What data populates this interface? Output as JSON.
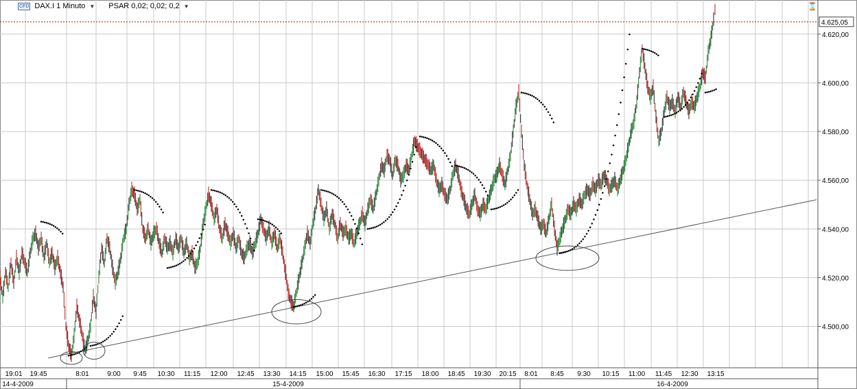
{
  "header": {
    "cfd_badge": "CFD",
    "instrument": "DAX.I 1 Minuto",
    "indicator": "PSAR 0,02; 0,02; 0,2"
  },
  "price_tag": "4.625,05",
  "colors": {
    "up": "#1b7a2a",
    "down": "#b01818",
    "sar": "#000000",
    "price_line": "#cc0000",
    "grid": "#c8c8c8",
    "trendline": "#555555"
  },
  "chart_data": {
    "type": "line",
    "y_ticks": [
      "4.500,00",
      "4.520,00",
      "4.540,00",
      "4.560,00",
      "4.580,00",
      "4.600,00",
      "4.620,00"
    ],
    "y_tick_values": [
      4500,
      4520,
      4540,
      4560,
      4580,
      4600,
      4620
    ],
    "ylim": [
      4483,
      4634
    ],
    "last_price": 4625.05,
    "x_labels": [
      "19:01",
      "19:45",
      "8:01",
      "9:00",
      "9:45",
      "10:30",
      "11:15",
      "12:00",
      "12:45",
      "13:30",
      "14:15",
      "15:00",
      "15:45",
      "16:30",
      "17:15",
      "18:00",
      "18:45",
      "19:30",
      "20:15",
      "8:01",
      "8:45",
      "9:30",
      "10:15",
      "11:00",
      "11:45",
      "12:30",
      "13:15"
    ],
    "date_labels": [
      "14-4-2009",
      "15-4-2009",
      "16-4-2009"
    ],
    "price_path": [
      [
        0,
        4520
      ],
      [
        4,
        4512
      ],
      [
        8,
        4522
      ],
      [
        12,
        4516
      ],
      [
        16,
        4526
      ],
      [
        20,
        4518
      ],
      [
        24,
        4528
      ],
      [
        28,
        4522
      ],
      [
        32,
        4530
      ],
      [
        36,
        4526
      ],
      [
        40,
        4522
      ],
      [
        44,
        4530
      ],
      [
        48,
        4536
      ],
      [
        52,
        4538
      ],
      [
        56,
        4532
      ],
      [
        60,
        4536
      ],
      [
        64,
        4528
      ],
      [
        68,
        4534
      ],
      [
        72,
        4526
      ],
      [
        76,
        4530
      ],
      [
        80,
        4524
      ],
      [
        84,
        4528
      ],
      [
        88,
        4522
      ],
      [
        92,
        4516
      ],
      [
        96,
        4500
      ],
      [
        100,
        4492
      ],
      [
        104,
        4488
      ],
      [
        108,
        4496
      ],
      [
        112,
        4508
      ],
      [
        116,
        4502
      ],
      [
        120,
        4496
      ],
      [
        124,
        4490
      ],
      [
        128,
        4494
      ],
      [
        132,
        4500
      ],
      [
        136,
        4512
      ],
      [
        140,
        4506
      ],
      [
        144,
        4520
      ],
      [
        148,
        4532
      ],
      [
        152,
        4526
      ],
      [
        156,
        4536
      ],
      [
        160,
        4532
      ],
      [
        164,
        4524
      ],
      [
        168,
        4518
      ],
      [
        172,
        4522
      ],
      [
        176,
        4528
      ],
      [
        180,
        4536
      ],
      [
        184,
        4540
      ],
      [
        188,
        4550
      ],
      [
        192,
        4556
      ],
      [
        196,
        4554
      ],
      [
        200,
        4548
      ],
      [
        204,
        4552
      ],
      [
        208,
        4540
      ],
      [
        212,
        4536
      ],
      [
        216,
        4540
      ],
      [
        220,
        4534
      ],
      [
        224,
        4538
      ],
      [
        228,
        4540
      ],
      [
        232,
        4534
      ],
      [
        236,
        4530
      ],
      [
        240,
        4536
      ],
      [
        244,
        4532
      ],
      [
        248,
        4534
      ],
      [
        252,
        4530
      ],
      [
        256,
        4536
      ],
      [
        260,
        4532
      ],
      [
        264,
        4536
      ],
      [
        268,
        4530
      ],
      [
        272,
        4534
      ],
      [
        276,
        4528
      ],
      [
        280,
        4530
      ],
      [
        284,
        4524
      ],
      [
        288,
        4526
      ],
      [
        292,
        4532
      ],
      [
        296,
        4542
      ],
      [
        300,
        4548
      ],
      [
        304,
        4554
      ],
      [
        308,
        4550
      ],
      [
        312,
        4544
      ],
      [
        316,
        4548
      ],
      [
        320,
        4540
      ],
      [
        324,
        4536
      ],
      [
        328,
        4542
      ],
      [
        332,
        4538
      ],
      [
        336,
        4534
      ],
      [
        340,
        4538
      ],
      [
        344,
        4532
      ],
      [
        348,
        4536
      ],
      [
        352,
        4530
      ],
      [
        356,
        4528
      ],
      [
        360,
        4532
      ],
      [
        364,
        4534
      ],
      [
        368,
        4530
      ],
      [
        372,
        4534
      ],
      [
        376,
        4538
      ],
      [
        380,
        4544
      ],
      [
        384,
        4540
      ],
      [
        388,
        4536
      ],
      [
        392,
        4540
      ],
      [
        396,
        4534
      ],
      [
        400,
        4538
      ],
      [
        404,
        4532
      ],
      [
        408,
        4536
      ],
      [
        412,
        4530
      ],
      [
        416,
        4522
      ],
      [
        420,
        4514
      ],
      [
        424,
        4510
      ],
      [
        428,
        4508
      ],
      [
        432,
        4514
      ],
      [
        436,
        4520
      ],
      [
        440,
        4526
      ],
      [
        444,
        4532
      ],
      [
        448,
        4538
      ],
      [
        452,
        4534
      ],
      [
        456,
        4542
      ],
      [
        460,
        4548
      ],
      [
        464,
        4556
      ],
      [
        468,
        4550
      ],
      [
        472,
        4544
      ],
      [
        476,
        4548
      ],
      [
        480,
        4540
      ],
      [
        484,
        4546
      ],
      [
        488,
        4542
      ],
      [
        492,
        4536
      ],
      [
        496,
        4542
      ],
      [
        500,
        4538
      ],
      [
        504,
        4540
      ],
      [
        508,
        4536
      ],
      [
        512,
        4538
      ],
      [
        516,
        4534
      ],
      [
        520,
        4538
      ],
      [
        524,
        4542
      ],
      [
        528,
        4546
      ],
      [
        532,
        4542
      ],
      [
        536,
        4548
      ],
      [
        540,
        4552
      ],
      [
        544,
        4548
      ],
      [
        548,
        4554
      ],
      [
        552,
        4560
      ],
      [
        556,
        4566
      ],
      [
        560,
        4564
      ],
      [
        564,
        4570
      ],
      [
        568,
        4568
      ],
      [
        572,
        4562
      ],
      [
        576,
        4568
      ],
      [
        580,
        4566
      ],
      [
        584,
        4560
      ],
      [
        588,
        4562
      ],
      [
        592,
        4566
      ],
      [
        596,
        4564
      ],
      [
        600,
        4570
      ],
      [
        604,
        4576
      ],
      [
        608,
        4574
      ],
      [
        612,
        4572
      ],
      [
        616,
        4570
      ],
      [
        620,
        4568
      ],
      [
        624,
        4566
      ],
      [
        628,
        4564
      ],
      [
        632,
        4566
      ],
      [
        636,
        4560
      ],
      [
        640,
        4556
      ],
      [
        644,
        4558
      ],
      [
        648,
        4554
      ],
      [
        652,
        4552
      ],
      [
        656,
        4556
      ],
      [
        660,
        4562
      ],
      [
        664,
        4566
      ],
      [
        668,
        4562
      ],
      [
        672,
        4556
      ],
      [
        676,
        4552
      ],
      [
        680,
        4548
      ],
      [
        684,
        4546
      ],
      [
        688,
        4550
      ],
      [
        692,
        4554
      ],
      [
        696,
        4548
      ],
      [
        700,
        4546
      ],
      [
        704,
        4550
      ],
      [
        708,
        4548
      ],
      [
        712,
        4552
      ],
      [
        716,
        4556
      ],
      [
        720,
        4560
      ],
      [
        724,
        4562
      ],
      [
        728,
        4566
      ],
      [
        732,
        4562
      ],
      [
        736,
        4558
      ],
      [
        740,
        4564
      ],
      [
        744,
        4570
      ],
      [
        748,
        4580
      ],
      [
        752,
        4590
      ],
      [
        756,
        4596
      ],
      [
        760,
        4580
      ],
      [
        764,
        4566
      ],
      [
        768,
        4558
      ],
      [
        772,
        4552
      ],
      [
        776,
        4546
      ],
      [
        780,
        4548
      ],
      [
        784,
        4544
      ],
      [
        788,
        4540
      ],
      [
        792,
        4542
      ],
      [
        796,
        4538
      ],
      [
        800,
        4544
      ],
      [
        804,
        4550
      ],
      [
        808,
        4540
      ],
      [
        812,
        4532
      ],
      [
        816,
        4536
      ],
      [
        820,
        4540
      ],
      [
        824,
        4544
      ],
      [
        828,
        4548
      ],
      [
        832,
        4546
      ],
      [
        836,
        4550
      ],
      [
        840,
        4548
      ],
      [
        844,
        4552
      ],
      [
        848,
        4550
      ],
      [
        852,
        4554
      ],
      [
        856,
        4556
      ],
      [
        860,
        4554
      ],
      [
        864,
        4558
      ],
      [
        868,
        4556
      ],
      [
        872,
        4560
      ],
      [
        876,
        4558
      ],
      [
        880,
        4562
      ],
      [
        884,
        4560
      ],
      [
        888,
        4556
      ],
      [
        892,
        4558
      ],
      [
        896,
        4560
      ],
      [
        900,
        4556
      ],
      [
        904,
        4560
      ],
      [
        908,
        4564
      ],
      [
        912,
        4568
      ],
      [
        916,
        4574
      ],
      [
        920,
        4580
      ],
      [
        924,
        4584
      ],
      [
        928,
        4592
      ],
      [
        932,
        4604
      ],
      [
        936,
        4614
      ],
      [
        940,
        4606
      ],
      [
        944,
        4598
      ],
      [
        948,
        4594
      ],
      [
        952,
        4598
      ],
      [
        956,
        4586
      ],
      [
        960,
        4576
      ],
      [
        964,
        4580
      ],
      [
        968,
        4588
      ],
      [
        972,
        4594
      ],
      [
        976,
        4590
      ],
      [
        980,
        4592
      ],
      [
        984,
        4588
      ],
      [
        988,
        4594
      ],
      [
        992,
        4590
      ],
      [
        996,
        4596
      ],
      [
        1000,
        4592
      ],
      [
        1004,
        4588
      ],
      [
        1008,
        4592
      ],
      [
        1012,
        4590
      ],
      [
        1016,
        4594
      ],
      [
        1020,
        4598
      ],
      [
        1024,
        4604
      ],
      [
        1028,
        4602
      ],
      [
        1032,
        4612
      ],
      [
        1036,
        4618
      ],
      [
        1040,
        4626
      ],
      [
        1042,
        4630
      ],
      [
        1044,
        4625.05
      ]
    ],
    "sar_segments": [
      {
        "x": [
          60,
          92
        ],
        "start": 4543,
        "dir": -1
      },
      {
        "x": [
          100,
          128
        ],
        "start": 4488,
        "dir": 1
      },
      {
        "x": [
          132,
          180
        ],
        "start": 4492,
        "dir": 1
      },
      {
        "x": [
          196,
          240
        ],
        "start": 4556,
        "dir": -1
      },
      {
        "x": [
          244,
          300
        ],
        "start": 4524,
        "dir": 1
      },
      {
        "x": [
          308,
          372
        ],
        "start": 4556,
        "dir": -1
      },
      {
        "x": [
          376,
          412
        ],
        "start": 4544,
        "dir": -1
      },
      {
        "x": [
          428,
          460
        ],
        "start": 4508,
        "dir": 1
      },
      {
        "x": [
          468,
          528
        ],
        "start": 4556,
        "dir": -1
      },
      {
        "x": [
          536,
          608
        ],
        "start": 4540,
        "dir": 1
      },
      {
        "x": [
          612,
          660
        ],
        "start": 4578,
        "dir": -1
      },
      {
        "x": [
          664,
          712
        ],
        "start": 4566,
        "dir": -1
      },
      {
        "x": [
          716,
          756
        ],
        "start": 4548,
        "dir": 1
      },
      {
        "x": [
          760,
          808
        ],
        "start": 4596,
        "dir": -1
      },
      {
        "x": [
          816,
          920
        ],
        "start": 4530,
        "dir": 1
      },
      {
        "x": [
          936,
          960
        ],
        "start": 4614,
        "dir": -1
      },
      {
        "x": [
          968,
          1024
        ],
        "start": 4586,
        "dir": 1
      },
      {
        "x": [
          1028,
          1044
        ],
        "start": 4596,
        "dir": 1
      }
    ],
    "trendline": [
      [
        70,
        4487
      ],
      [
        1190,
        4552
      ]
    ],
    "annotations": [
      {
        "type": "ellipse",
        "cx": 104,
        "cy": 4487,
        "rx": 16,
        "ry": 2.6
      },
      {
        "type": "ellipse",
        "cx": 137,
        "cy": 4490,
        "rx": 16,
        "ry": 3.5
      },
      {
        "type": "ellipse",
        "cx": 432,
        "cy": 4506,
        "rx": 36,
        "ry": 5
      },
      {
        "type": "ellipse",
        "cx": 827,
        "cy": 4528,
        "rx": 46,
        "ry": 5
      }
    ]
  }
}
